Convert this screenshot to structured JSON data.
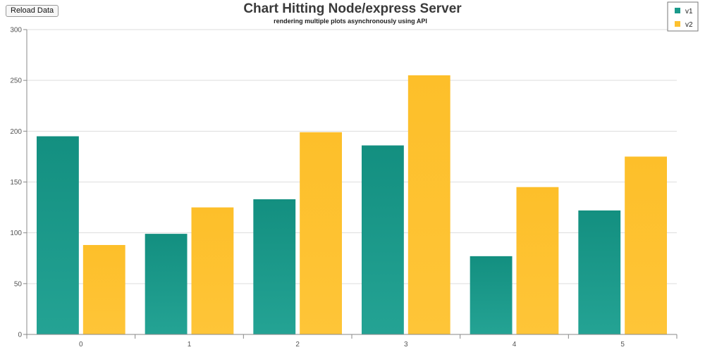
{
  "toolbar": {
    "reload_label": "Reload Data"
  },
  "colors": {
    "v1": "#1a9a8b",
    "v2": "#fdc12f",
    "grid": "#dddddd",
    "axis": "#888888"
  },
  "chart_data": {
    "type": "bar",
    "title": "Chart Hitting Node/express Server",
    "subtitle": "rendering multiple plots asynchronously using API",
    "categories": [
      "0",
      "1",
      "2",
      "3",
      "4",
      "5"
    ],
    "series": [
      {
        "name": "v1",
        "values": [
          195,
          99,
          133,
          186,
          77,
          122
        ]
      },
      {
        "name": "v2",
        "values": [
          88,
          125,
          199,
          255,
          145,
          175
        ]
      }
    ],
    "xlabel": "",
    "ylabel": "",
    "ylim": [
      0,
      300
    ],
    "yticks": [
      "0",
      "50",
      "100",
      "150",
      "200",
      "250",
      "300"
    ],
    "grid": true,
    "legend_position": "top-right"
  }
}
